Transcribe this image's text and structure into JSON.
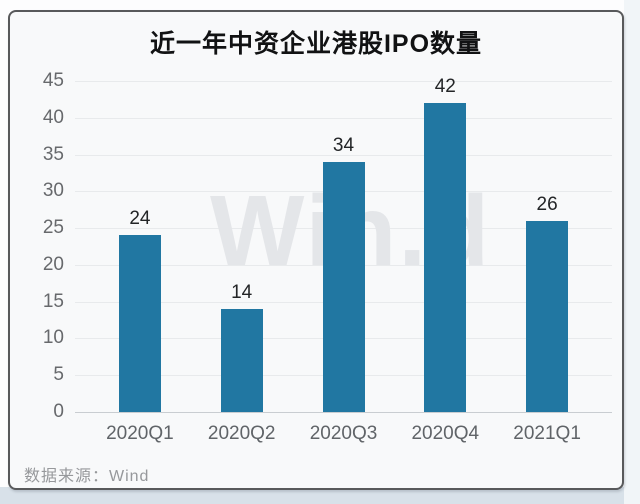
{
  "page": {
    "background_strip_color": "#d8e1e9",
    "card_border_color": "#58595b",
    "card_background": "#f8f9fa"
  },
  "chart_data": {
    "type": "bar",
    "title": "近一年中资企业港股IPO数量",
    "categories": [
      "2020Q1",
      "2020Q2",
      "2020Q3",
      "2020Q4",
      "2021Q1"
    ],
    "values": [
      24,
      14,
      34,
      42,
      26
    ],
    "xlabel": "",
    "ylabel": "",
    "ylim": [
      0,
      45
    ],
    "ytick_step": 5,
    "grid": true,
    "legend": null,
    "bar_color": "#2177a2",
    "value_labels_shown": true,
    "watermark": "Win.d",
    "source": "数据来源：Wind"
  }
}
